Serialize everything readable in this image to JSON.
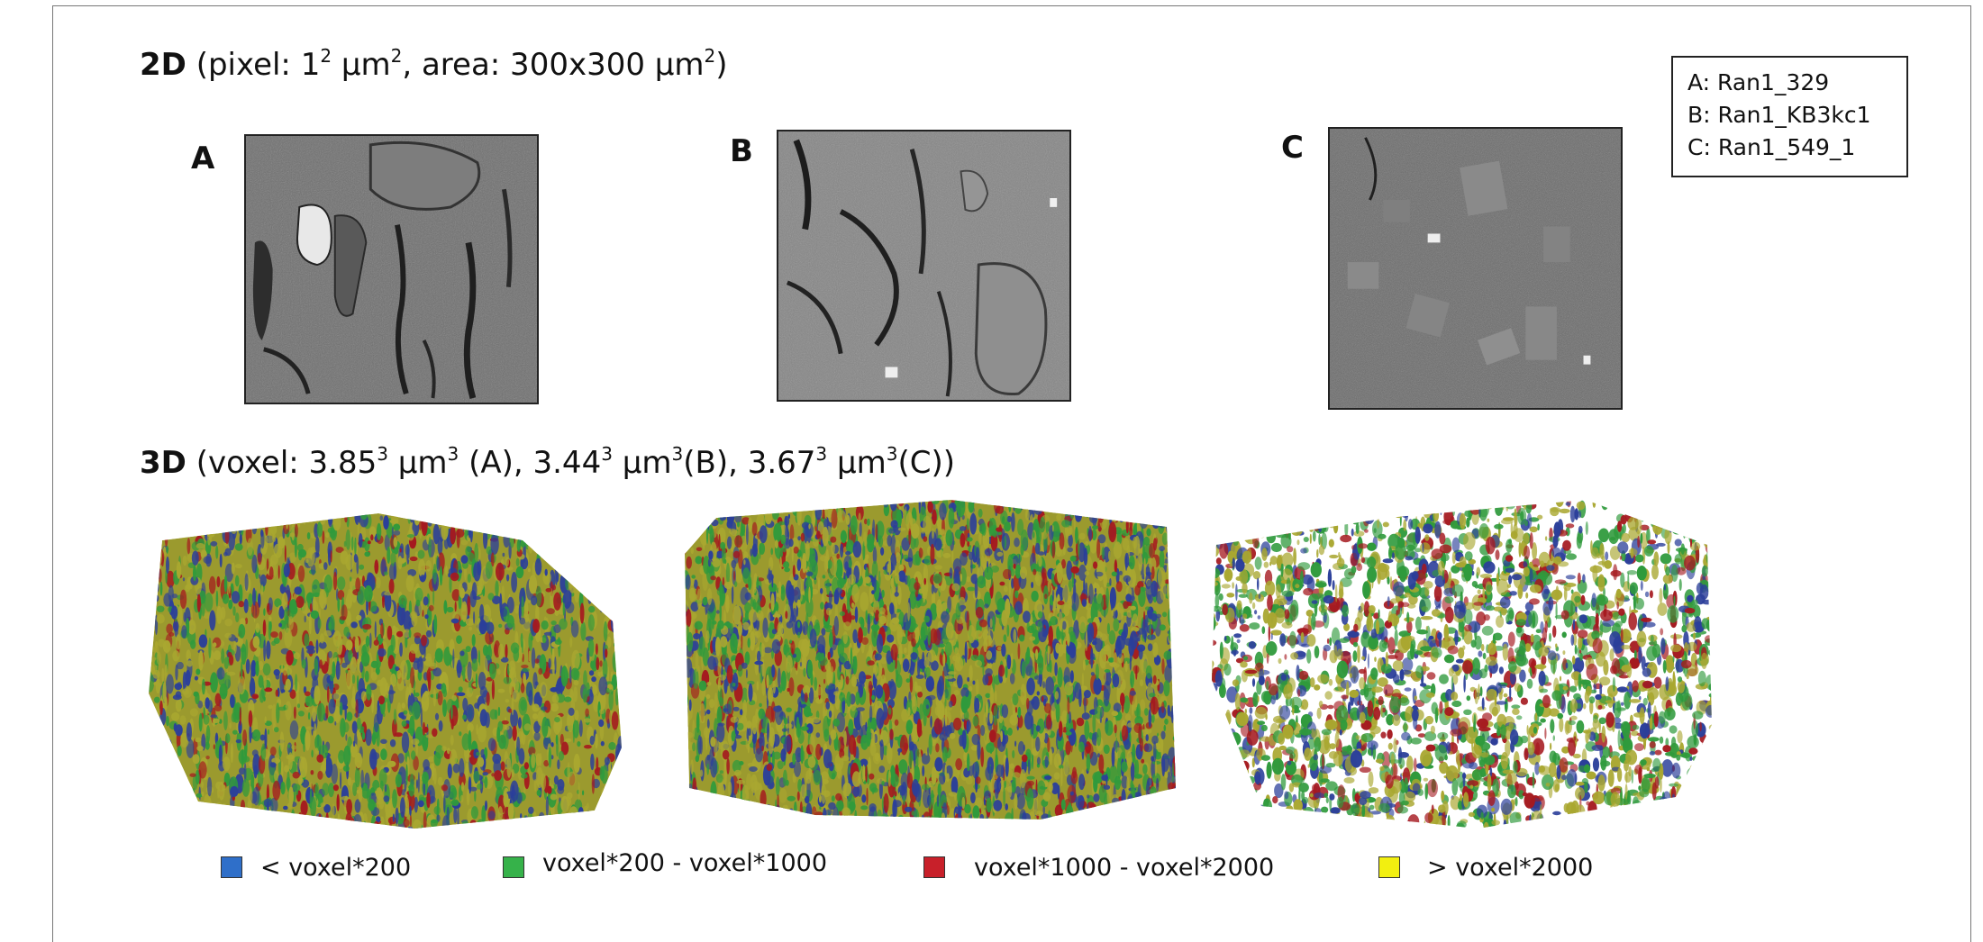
{
  "figure": {
    "heading_2d": {
      "label": "2D",
      "text": " (pixel: 1",
      "sup1": "2",
      "text2": " µm",
      "sup2": "2",
      "text3": ", area: 300x300 µm",
      "sup3": "2",
      "text4": ")"
    },
    "heading_3d": {
      "label": "3D",
      "t1": " (voxel: 3.85",
      "s1": "3",
      "t2": " µm",
      "s2": "3",
      "t3": " (A), 3.44",
      "s3": "3",
      "t4": " µm",
      "s4": "3",
      "t5": "(B), 3.67",
      "s5": "3",
      "t6": " µm",
      "s6": "3",
      "t7": "(C))"
    },
    "panels": [
      {
        "letter": "A"
      },
      {
        "letter": "B"
      },
      {
        "letter": "C"
      }
    ],
    "sample_key": [
      "A: Ran1_329",
      "B: Ran1_KB3kc1",
      "C: Ran1_549_1"
    ],
    "legend": [
      {
        "label": "< voxel*200",
        "color": "#2f6fc9"
      },
      {
        "label": "voxel*200 - voxel*1000",
        "color": "#36b24a"
      },
      {
        "label": "voxel*1000 - voxel*2000",
        "color": "#c8202a"
      },
      {
        "label": "> voxel*2000",
        "color": "#f2ef10"
      }
    ],
    "volume_colors": {
      "base": "#9b9a2e",
      "yellow": "#a9a730",
      "green": "#2f9a3c",
      "red": "#a5191f",
      "blue": "#2b3f9a"
    }
  }
}
